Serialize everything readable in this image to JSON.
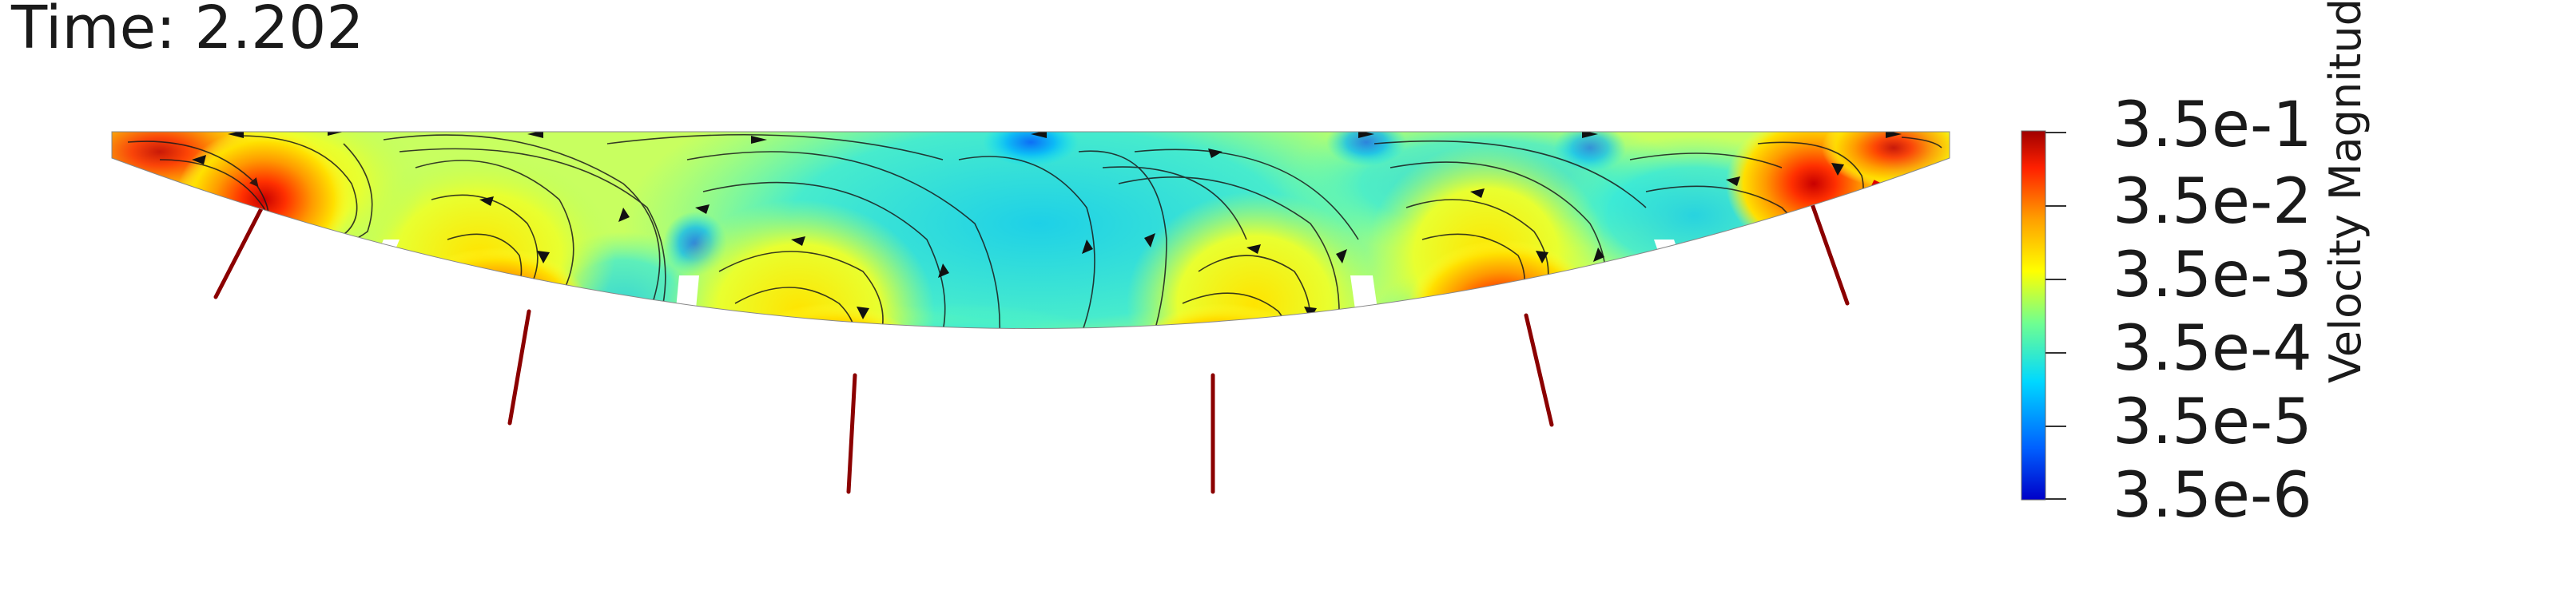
{
  "time_label": "Time: 2.202",
  "colorbar": {
    "title": "Velocity Magnitude",
    "ticks": [
      "3.5e-1",
      "3.5e-2",
      "3.5e-3",
      "3.5e-4",
      "3.5e-5",
      "3.5e-6"
    ],
    "scale": "log",
    "colors": [
      "#0000c8",
      "#0060ff",
      "#00d8ff",
      "#70ff90",
      "#ffff00",
      "#ffa000",
      "#ff2000",
      "#a00000"
    ]
  },
  "colors": {
    "stream_line": "#1a1a1a",
    "jet_red": "#8b0000",
    "baffle": "#ffffff"
  }
}
